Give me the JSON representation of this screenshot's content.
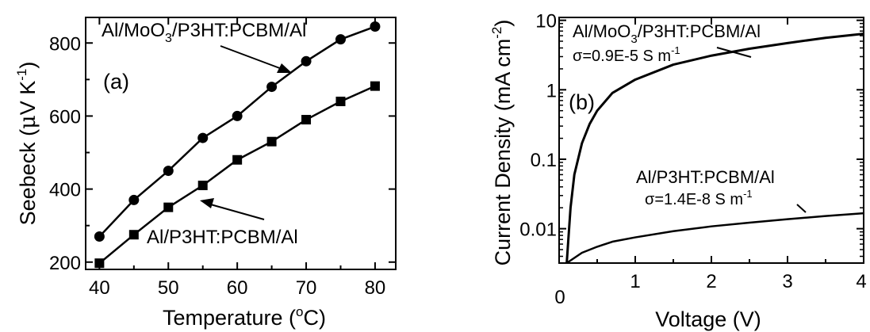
{
  "chart_data": [
    {
      "type": "line",
      "panel_label": "(a)",
      "xlabel_main": "Temperature (",
      "xlabel_sup": "o",
      "xlabel_end": "C)",
      "ylabel_main": "Seebeck (",
      "ylabel_mu": "μ",
      "ylabel_unit": "V K",
      "ylabel_sup": "-1",
      "ylabel_end": ")",
      "xlim": [
        38,
        83
      ],
      "ylim": [
        180,
        870
      ],
      "x_ticks": [
        40,
        50,
        60,
        70,
        80
      ],
      "y_ticks": [
        200,
        400,
        600,
        800
      ],
      "series": [
        {
          "name": "Al/MoO3/P3HT:PCBM/Al",
          "marker": "circle",
          "x": [
            40,
            45,
            50,
            55,
            60,
            65,
            70,
            75,
            80
          ],
          "values": [
            270,
            370,
            450,
            540,
            600,
            680,
            750,
            810,
            845
          ]
        },
        {
          "name": "Al/P3HT:PCBM/Al",
          "marker": "square",
          "x": [
            40,
            45,
            50,
            55,
            60,
            65,
            70,
            75,
            80
          ],
          "values": [
            197,
            275,
            350,
            410,
            480,
            530,
            590,
            640,
            682
          ]
        }
      ],
      "annotations": {
        "top_a": "Al/MoO",
        "top_sub": "3",
        "top_b": "/P3HT:PCBM/Al",
        "bottom": "Al/P3HT:PCBM/Al"
      }
    },
    {
      "type": "line",
      "panel_label": "(b)",
      "xlabel": "Voltage (V)",
      "ylabel_main": "Current Density (mA cm",
      "ylabel_sup": "-2",
      "ylabel_end": ")",
      "y_scale": "log",
      "xlim": [
        0,
        4
      ],
      "ylim": [
        0.0032,
        11
      ],
      "x_ticks": [
        "1",
        "2",
        "3",
        "4"
      ],
      "x_zero_label": "0",
      "y_ticks": [
        "0.01",
        "0.1",
        "1",
        "10"
      ],
      "series": [
        {
          "name": "Al/MoO3/P3HT:PCBM/Al",
          "x": [
            0.1,
            0.15,
            0.2,
            0.3,
            0.4,
            0.5,
            0.7,
            1.0,
            1.5,
            2.0,
            2.5,
            3.0,
            3.5,
            4.0
          ],
          "values": [
            0.0032,
            0.02,
            0.06,
            0.17,
            0.32,
            0.5,
            0.9,
            1.4,
            2.3,
            3.1,
            3.9,
            4.7,
            5.6,
            6.4
          ]
        },
        {
          "name": "Al/P3HT:PCBM/Al",
          "x": [
            0.1,
            0.3,
            0.5,
            0.7,
            1.0,
            1.5,
            2.0,
            2.5,
            3.0,
            3.5,
            4.0
          ],
          "values": [
            0.0032,
            0.0045,
            0.0055,
            0.0065,
            0.0075,
            0.0092,
            0.0108,
            0.0122,
            0.0137,
            0.0152,
            0.0167
          ]
        }
      ],
      "annotations": {
        "top_a": "Al/MoO",
        "top_sub": "3",
        "top_b": "/P3HT:PCBM/Al",
        "top_sigma": "σ=0.9E-5 S m",
        "top_sigma_sup": "-1",
        "bottom": "Al/P3HT:PCBM/Al",
        "bottom_sigma": "σ=1.4E-8 S m",
        "bottom_sigma_sup": "-1"
      }
    }
  ]
}
